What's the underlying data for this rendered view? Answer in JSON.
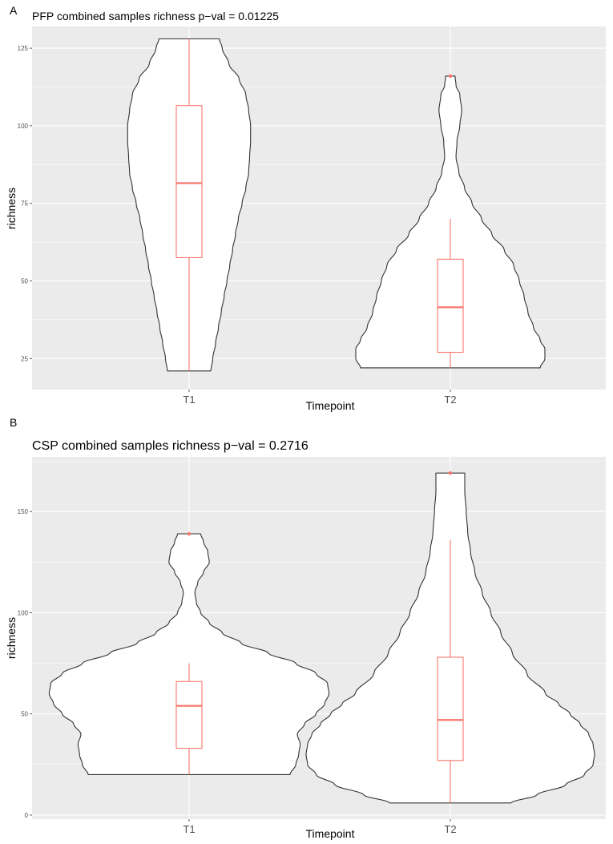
{
  "colors": {
    "panel_bg": "#ebebeb",
    "grid": "#ffffff",
    "violin_stroke": "#333333",
    "violin_fill": "#ffffff",
    "box": "#f8766d",
    "outlier": "#f8766d"
  },
  "panels": [
    {
      "letter": "A",
      "chart_data": {
        "type": "violin",
        "title": "PFP combined samples richness p−val = 0.01225",
        "xlabel": "Timepoint",
        "ylabel": "richness",
        "categories": [
          "T1",
          "T2"
        ],
        "ylim": [
          15,
          132
        ],
        "yticks": [
          25,
          50,
          75,
          100,
          125
        ],
        "grid": true,
        "series": [
          {
            "category": "T1",
            "min": 21,
            "max": 128,
            "box": {
              "lower_whisker": 21,
              "q1": 57.5,
              "median": 81.5,
              "q3": 106.5,
              "upper_whisker": 128
            },
            "outliers": [],
            "density": [
              [
                21,
                0.23
              ],
              [
                25,
                0.25
              ],
              [
                30,
                0.28
              ],
              [
                35,
                0.31
              ],
              [
                40,
                0.34
              ],
              [
                45,
                0.37
              ],
              [
                50,
                0.4
              ],
              [
                55,
                0.43
              ],
              [
                60,
                0.46
              ],
              [
                65,
                0.49
              ],
              [
                70,
                0.52
              ],
              [
                75,
                0.56
              ],
              [
                80,
                0.6
              ],
              [
                85,
                0.63
              ],
              [
                90,
                0.64
              ],
              [
                95,
                0.65
              ],
              [
                100,
                0.65
              ],
              [
                105,
                0.63
              ],
              [
                110,
                0.6
              ],
              [
                115,
                0.53
              ],
              [
                120,
                0.42
              ],
              [
                125,
                0.35
              ],
              [
                128,
                0.32
              ]
            ]
          },
          {
            "category": "T2",
            "min": 22,
            "max": 116,
            "box": {
              "lower_whisker": 22,
              "q1": 27,
              "median": 41.5,
              "q3": 57,
              "upper_whisker": 70
            },
            "outliers": [
              116
            ],
            "density": [
              [
                22,
                0.95
              ],
              [
                25,
                1.0
              ],
              [
                28,
                1.0
              ],
              [
                31,
                0.95
              ],
              [
                35,
                0.88
              ],
              [
                40,
                0.82
              ],
              [
                45,
                0.78
              ],
              [
                50,
                0.73
              ],
              [
                55,
                0.67
              ],
              [
                60,
                0.57
              ],
              [
                65,
                0.44
              ],
              [
                70,
                0.33
              ],
              [
                75,
                0.23
              ],
              [
                80,
                0.15
              ],
              [
                85,
                0.09
              ],
              [
                90,
                0.06
              ],
              [
                95,
                0.07
              ],
              [
                100,
                0.1
              ],
              [
                105,
                0.12
              ],
              [
                110,
                0.1
              ],
              [
                113,
                0.06
              ],
              [
                116,
                0.05
              ]
            ]
          }
        ]
      }
    },
    {
      "letter": "B",
      "chart_data": {
        "type": "violin",
        "title": "CSP combined samples richness p−val = 0.2716",
        "xlabel": "Timepoint",
        "ylabel": "richness",
        "categories": [
          "T1",
          "T2"
        ],
        "ylim": [
          -2,
          177
        ],
        "yticks": [
          0,
          50,
          100,
          150
        ],
        "grid": true,
        "series": [
          {
            "category": "T1",
            "min": 20,
            "max": 139,
            "box": {
              "lower_whisker": 20,
              "q1": 33,
              "median": 54,
              "q3": 66,
              "upper_whisker": 75
            },
            "outliers": [
              139
            ],
            "density": [
              [
                20,
                0.7
              ],
              [
                25,
                0.74
              ],
              [
                30,
                0.76
              ],
              [
                35,
                0.77
              ],
              [
                40,
                0.75
              ],
              [
                45,
                0.8
              ],
              [
                50,
                0.88
              ],
              [
                55,
                0.94
              ],
              [
                60,
                0.97
              ],
              [
                65,
                0.96
              ],
              [
                70,
                0.88
              ],
              [
                75,
                0.74
              ],
              [
                80,
                0.55
              ],
              [
                85,
                0.36
              ],
              [
                90,
                0.23
              ],
              [
                95,
                0.14
              ],
              [
                100,
                0.08
              ],
              [
                105,
                0.05
              ],
              [
                110,
                0.04
              ],
              [
                115,
                0.06
              ],
              [
                120,
                0.1
              ],
              [
                125,
                0.14
              ],
              [
                130,
                0.13
              ],
              [
                135,
                0.1
              ],
              [
                139,
                0.08
              ]
            ]
          },
          {
            "category": "T2",
            "min": 6,
            "max": 169,
            "box": {
              "lower_whisker": 6,
              "q1": 27,
              "median": 47,
              "q3": 78,
              "upper_whisker": 136
            },
            "outliers": [
              169
            ],
            "density": [
              [
                6,
                0.42
              ],
              [
                10,
                0.6
              ],
              [
                15,
                0.8
              ],
              [
                20,
                0.93
              ],
              [
                25,
                0.99
              ],
              [
                30,
                1.0
              ],
              [
                35,
                0.99
              ],
              [
                40,
                0.96
              ],
              [
                45,
                0.9
              ],
              [
                50,
                0.83
              ],
              [
                55,
                0.75
              ],
              [
                60,
                0.66
              ],
              [
                70,
                0.53
              ],
              [
                80,
                0.43
              ],
              [
                90,
                0.35
              ],
              [
                100,
                0.28
              ],
              [
                110,
                0.22
              ],
              [
                120,
                0.17
              ],
              [
                130,
                0.14
              ],
              [
                140,
                0.12
              ],
              [
                150,
                0.11
              ],
              [
                160,
                0.1
              ],
              [
                169,
                0.1
              ]
            ]
          }
        ]
      }
    }
  ]
}
